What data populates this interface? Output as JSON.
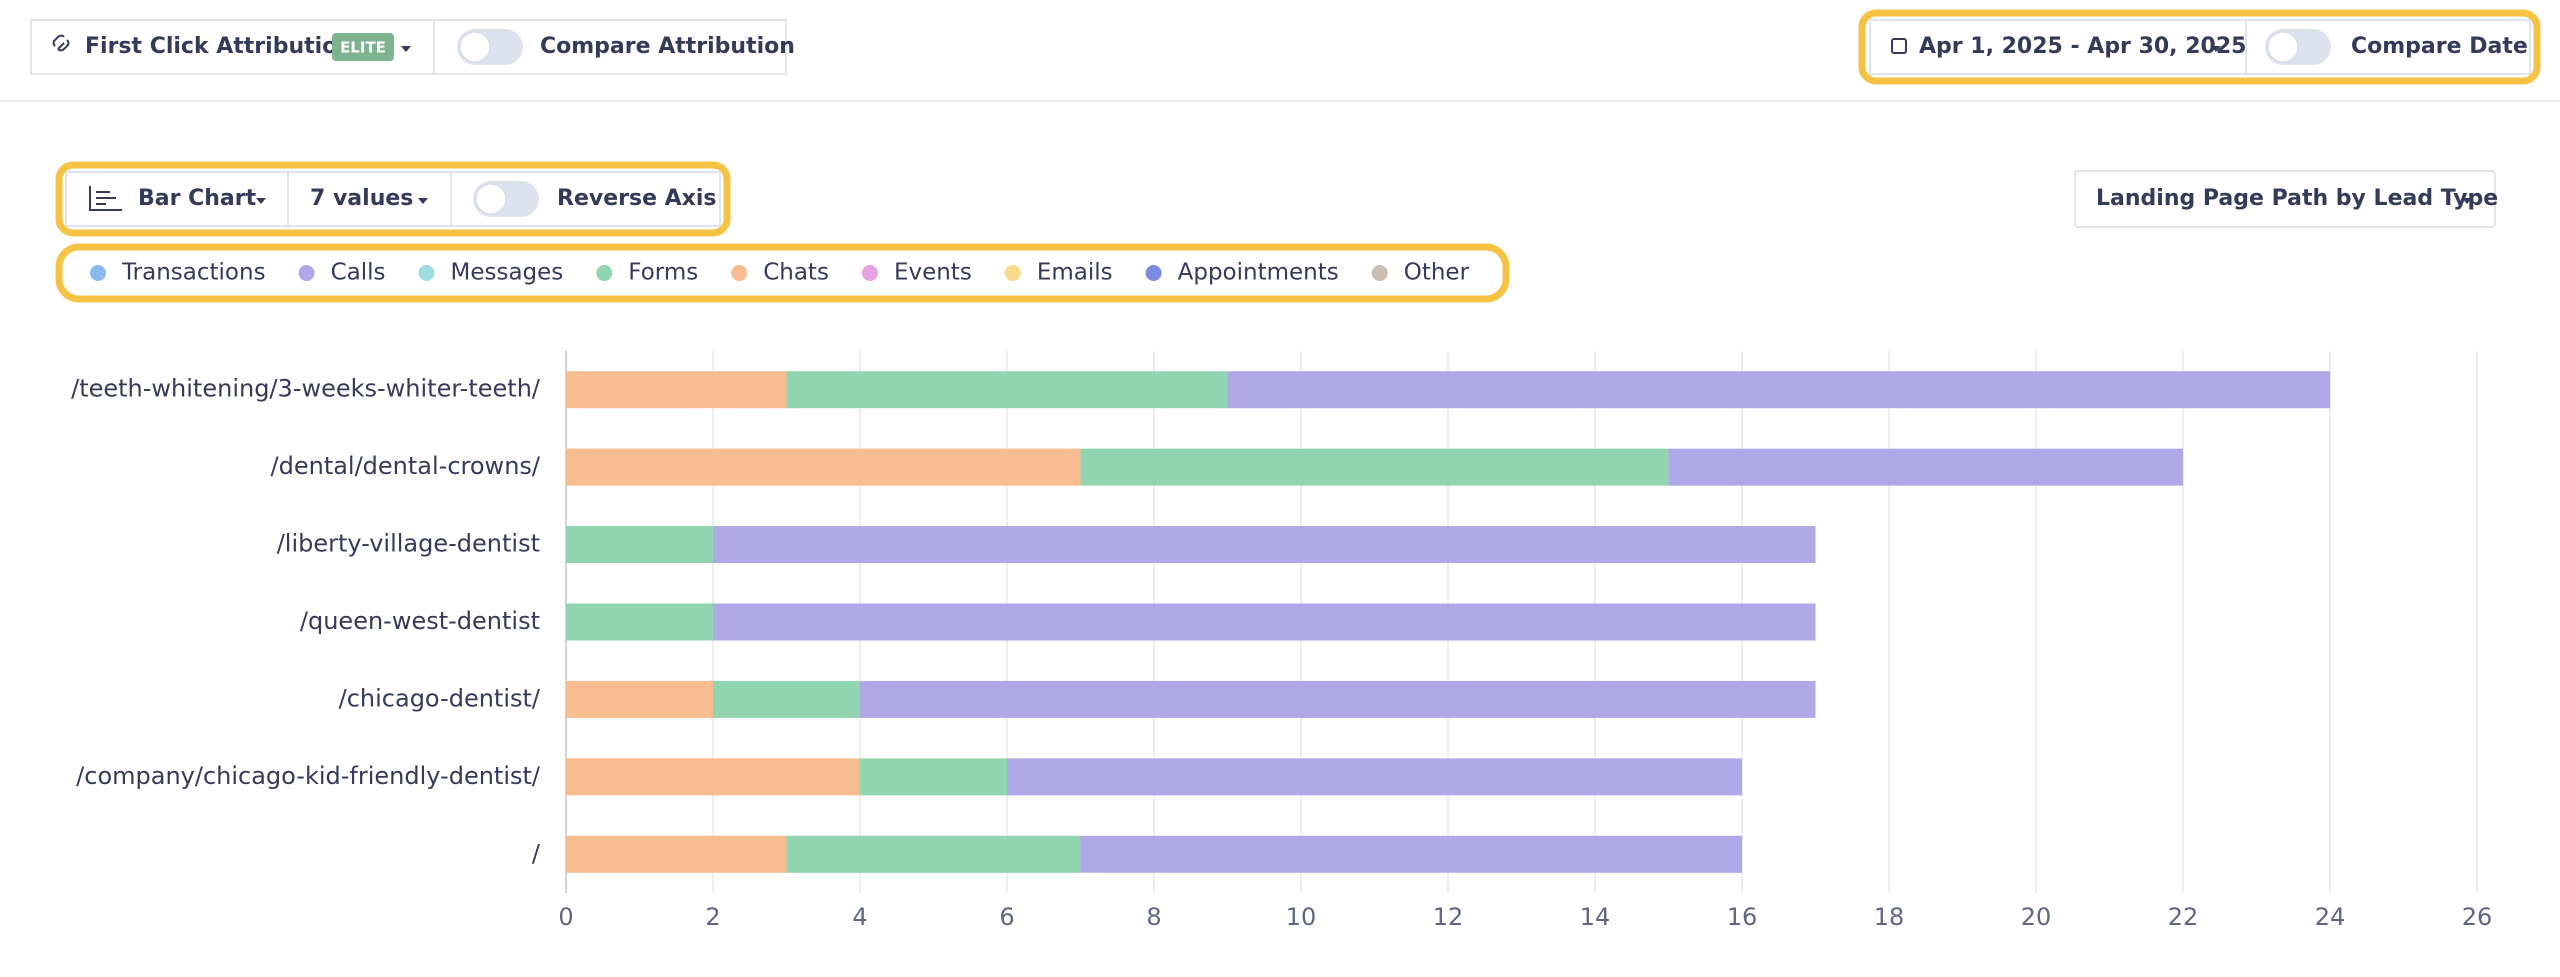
{
  "toolbar": {
    "attribution": "First Click Attribution",
    "badge": "ELITE",
    "compare_attribution": "Compare Attribution",
    "date_range": "Apr 1, 2025 - Apr 30, 2025",
    "compare_date": "Compare Date"
  },
  "controls": {
    "chart_type": "Bar Chart",
    "values_count": "7 values",
    "reverse_axis": "Reverse Axis",
    "grouping": "Landing Page Path by Lead Type"
  },
  "chart_data": {
    "type": "bar",
    "orientation": "horizontal",
    "stacked": true,
    "grid": true,
    "categories": [
      "/teeth-whitening/3-weeks-whiter-teeth/",
      "/dental/dental-crowns/",
      "/liberty-village-dentist",
      "/queen-west-dentist",
      "/chicago-dentist/",
      "/company/chicago-kid-friendly-dentist/",
      "/"
    ],
    "series": [
      {
        "name": "Transactions",
        "color": "#8ab9f1",
        "values": [
          0,
          0,
          0,
          0,
          0,
          0,
          0
        ]
      },
      {
        "name": "Calls",
        "color": "#b0a8e6",
        "values": [
          15,
          7,
          15,
          15,
          13,
          10,
          9
        ]
      },
      {
        "name": "Messages",
        "color": "#9fdbe0",
        "values": [
          0,
          0,
          0,
          0,
          0,
          0,
          0
        ]
      },
      {
        "name": "Forms",
        "color": "#90d5b0",
        "values": [
          6,
          8,
          2,
          2,
          2,
          2,
          4
        ]
      },
      {
        "name": "Chats",
        "color": "#f7bd90",
        "values": [
          3,
          7,
          0,
          0,
          2,
          4,
          3
        ]
      },
      {
        "name": "Events",
        "color": "#e9a0e3",
        "values": [
          0,
          0,
          0,
          0,
          0,
          0,
          0
        ]
      },
      {
        "name": "Emails",
        "color": "#f9d98a",
        "values": [
          0,
          0,
          0,
          0,
          0,
          0,
          0
        ]
      },
      {
        "name": "Appointments",
        "color": "#7b8be0",
        "values": [
          0,
          0,
          0,
          0,
          0,
          0,
          0
        ]
      },
      {
        "name": "Other",
        "color": "#c9bdb4",
        "values": [
          0,
          0,
          0,
          0,
          0,
          0,
          0
        ]
      }
    ],
    "xlim": [
      0,
      26
    ],
    "xticks": [
      0,
      2,
      4,
      6,
      8,
      10,
      12,
      14,
      16,
      18,
      20,
      22,
      24,
      26
    ]
  }
}
